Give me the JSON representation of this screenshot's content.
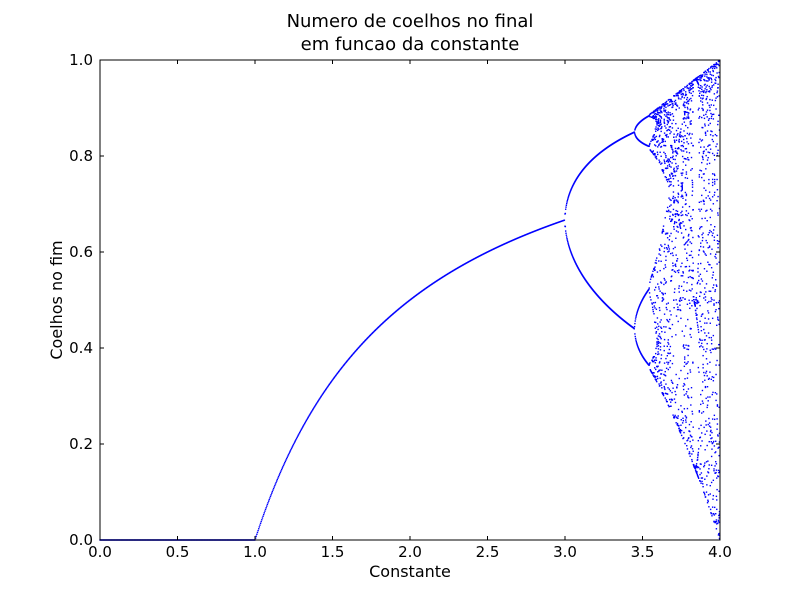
{
  "chart_data": {
    "type": "scatter",
    "title": [
      "Numero de coelhos no final",
      "em funcao da constante"
    ],
    "xlabel": "Constante",
    "ylabel": "Coelhos no fim",
    "xlim": [
      0.0,
      4.0
    ],
    "ylim": [
      0.0,
      1.0
    ],
    "x_ticks": [
      0.0,
      0.5,
      1.0,
      1.5,
      2.0,
      2.5,
      3.0,
      3.5,
      4.0
    ],
    "x_tick_labels": [
      "0.0",
      "0.5",
      "1.0",
      "1.5",
      "2.0",
      "2.5",
      "3.0",
      "3.5",
      "4.0"
    ],
    "y_ticks": [
      0.0,
      0.2,
      0.4,
      0.6,
      0.8,
      1.0
    ],
    "y_tick_labels": [
      "0.0",
      "0.2",
      "0.4",
      "0.6",
      "0.8",
      "1.0"
    ],
    "grid": false,
    "legend": "none",
    "series": [
      {
        "color": "#0000ff",
        "marker": "dot",
        "data_description_source": "logistic map x = r*x*(1-x), final values after many iterations, sampled over r in [0, 4]"
      }
    ]
  }
}
